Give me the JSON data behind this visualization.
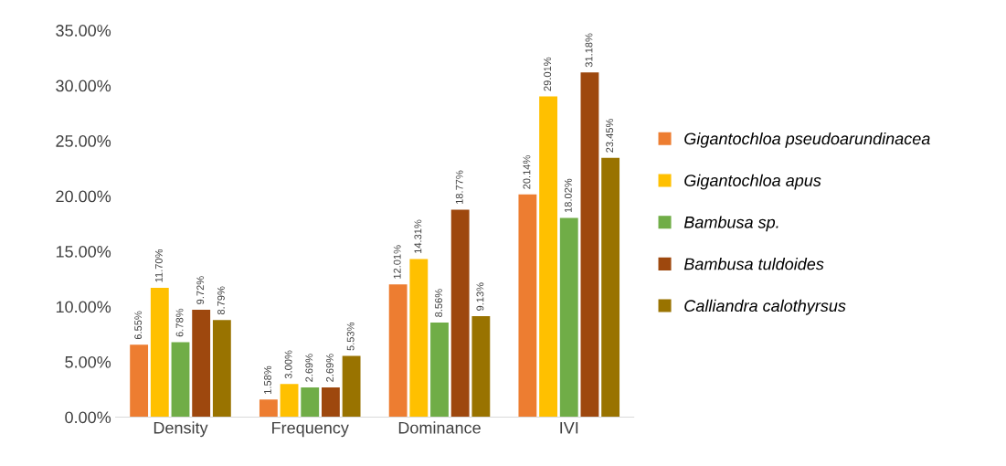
{
  "chart_data": {
    "type": "bar",
    "categories": [
      "Density",
      "Frequency",
      "Dominance",
      "IVI"
    ],
    "series": [
      {
        "name": "Gigantochloa pseudoarundinacea",
        "color": "#ed7d31",
        "values": [
          6.55,
          1.58,
          12.01,
          20.14
        ],
        "value_labels": [
          "6.55%",
          "1.58%",
          "12.01%",
          "20.14%"
        ]
      },
      {
        "name": "Gigantochloa apus",
        "color": "#ffc000",
        "values": [
          11.7,
          3.0,
          14.31,
          29.01
        ],
        "value_labels": [
          "11.70%",
          "3.00%",
          "14.31%",
          "29.01%"
        ]
      },
      {
        "name": "Bambusa sp.",
        "color": "#70ad47",
        "values": [
          6.78,
          2.69,
          8.56,
          18.02
        ],
        "value_labels": [
          "6.78%",
          "2.69%",
          "8.56%",
          "18.02%"
        ]
      },
      {
        "name": "Bambusa tuldoides",
        "color": "#9e480e",
        "values": [
          9.72,
          2.69,
          18.77,
          31.18
        ],
        "value_labels": [
          "9.72%",
          "2.69%",
          "18.77%",
          "31.18%"
        ]
      },
      {
        "name": "Calliandra calothyrsus",
        "color": "#997300",
        "values": [
          8.79,
          5.53,
          9.13,
          23.45
        ],
        "value_labels": [
          "8.79%",
          "5.53%",
          "9.13%",
          "23.45%"
        ]
      }
    ],
    "ylim": [
      0,
      35
    ],
    "yticks": [
      {
        "value": 0,
        "label": "0.00%"
      },
      {
        "value": 5,
        "label": "5.00%"
      },
      {
        "value": 10,
        "label": "10.00%"
      },
      {
        "value": 15,
        "label": "15.00%"
      },
      {
        "value": 20,
        "label": "20.00%"
      },
      {
        "value": 25,
        "label": "25.00%"
      },
      {
        "value": 30,
        "label": "30.00%"
      },
      {
        "value": 35,
        "label": "35.00%"
      }
    ],
    "grid": false,
    "legend": "right"
  }
}
